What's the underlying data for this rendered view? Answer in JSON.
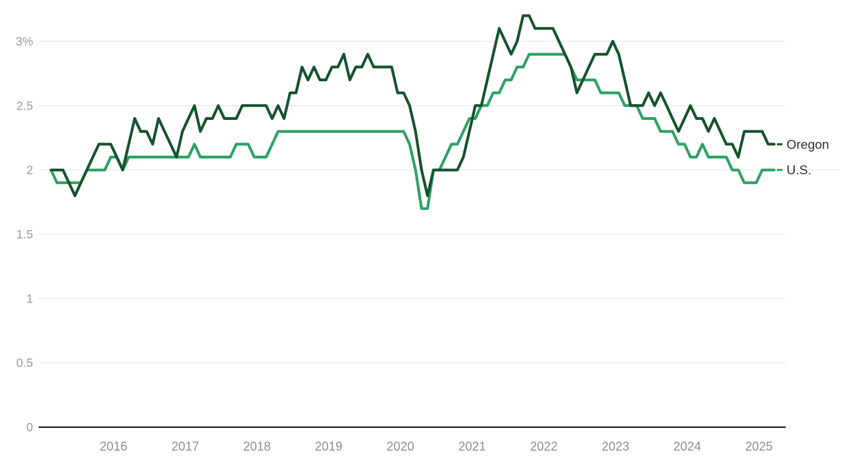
{
  "page": {
    "background": "#ffffff"
  },
  "chart_data": {
    "type": "line",
    "title": "",
    "xlabel": "",
    "ylabel": "",
    "unit": "%",
    "frequency": "monthly",
    "start_month": "2015-03",
    "end_month": "2025-04",
    "grid": "horizontal",
    "legend_position": "right-of-line-ends",
    "ylim": [
      0,
      3.36
    ],
    "x_tick_labels": [
      "2016",
      "2017",
      "2018",
      "2019",
      "2020",
      "2021",
      "2022",
      "2023",
      "2024",
      "2025"
    ],
    "y_ticks": [
      {
        "label": "3%",
        "value": 3
      },
      {
        "label": "2.5",
        "value": 2.5
      },
      {
        "label": "2",
        "value": 2
      },
      {
        "label": "1.5",
        "value": 1.5
      },
      {
        "label": "1",
        "value": 1
      },
      {
        "label": "0.5",
        "value": 0.5
      },
      {
        "label": "0",
        "value": 0
      }
    ],
    "series": [
      {
        "name": "Oregon",
        "color": "#14532b",
        "values": [
          2.0,
          2.0,
          2.0,
          1.9,
          1.8,
          1.9,
          2.0,
          2.1,
          2.2,
          2.2,
          2.2,
          2.1,
          2.0,
          2.2,
          2.4,
          2.3,
          2.3,
          2.2,
          2.4,
          2.3,
          2.2,
          2.1,
          2.3,
          2.4,
          2.5,
          2.3,
          2.4,
          2.4,
          2.5,
          2.4,
          2.4,
          2.4,
          2.5,
          2.5,
          2.5,
          2.5,
          2.5,
          2.4,
          2.5,
          2.4,
          2.6,
          2.6,
          2.8,
          2.7,
          2.8,
          2.7,
          2.7,
          2.8,
          2.8,
          2.9,
          2.7,
          2.8,
          2.8,
          2.9,
          2.8,
          2.8,
          2.8,
          2.8,
          2.6,
          2.6,
          2.5,
          2.3,
          2.0,
          1.8,
          2.0,
          2.0,
          2.0,
          2.0,
          2.0,
          2.1,
          2.3,
          2.5,
          2.5,
          2.7,
          2.9,
          3.1,
          3.0,
          2.9,
          3.0,
          3.2,
          3.2,
          3.1,
          3.1,
          3.1,
          3.1,
          3.0,
          2.9,
          2.8,
          2.6,
          2.7,
          2.8,
          2.9,
          2.9,
          2.9,
          3.0,
          2.9,
          2.7,
          2.5,
          2.5,
          2.5,
          2.6,
          2.5,
          2.6,
          2.5,
          2.4,
          2.3,
          2.4,
          2.5,
          2.4,
          2.4,
          2.3,
          2.4,
          2.3,
          2.2,
          2.2,
          2.1,
          2.3,
          2.3,
          2.3,
          2.3,
          2.2,
          2.2
        ]
      },
      {
        "name": "U.S.",
        "color": "#2ba163",
        "values": [
          2.0,
          1.9,
          1.9,
          1.9,
          1.9,
          1.9,
          2.0,
          2.0,
          2.0,
          2.0,
          2.1,
          2.1,
          2.0,
          2.1,
          2.1,
          2.1,
          2.1,
          2.1,
          2.1,
          2.1,
          2.1,
          2.1,
          2.1,
          2.1,
          2.2,
          2.1,
          2.1,
          2.1,
          2.1,
          2.1,
          2.1,
          2.2,
          2.2,
          2.2,
          2.1,
          2.1,
          2.1,
          2.2,
          2.3,
          2.3,
          2.3,
          2.3,
          2.3,
          2.3,
          2.3,
          2.3,
          2.3,
          2.3,
          2.3,
          2.3,
          2.3,
          2.3,
          2.3,
          2.3,
          2.3,
          2.3,
          2.3,
          2.3,
          2.3,
          2.3,
          2.2,
          2.0,
          1.7,
          1.7,
          2.0,
          2.0,
          2.1,
          2.2,
          2.2,
          2.3,
          2.4,
          2.4,
          2.5,
          2.5,
          2.6,
          2.6,
          2.7,
          2.7,
          2.8,
          2.8,
          2.9,
          2.9,
          2.9,
          2.9,
          2.9,
          2.9,
          2.9,
          2.8,
          2.7,
          2.7,
          2.7,
          2.7,
          2.6,
          2.6,
          2.6,
          2.6,
          2.5,
          2.5,
          2.5,
          2.4,
          2.4,
          2.4,
          2.3,
          2.3,
          2.3,
          2.2,
          2.2,
          2.1,
          2.1,
          2.2,
          2.1,
          2.1,
          2.1,
          2.1,
          2.0,
          2.0,
          1.9,
          1.9,
          1.9,
          2.0,
          2.0,
          2.0
        ]
      }
    ],
    "colors": {
      "gridline": "#e4e4e4",
      "zero_axis": "#1d1d1d",
      "axis_text": "#9a9a9a",
      "line_label_text": "#2d2d2d"
    }
  }
}
